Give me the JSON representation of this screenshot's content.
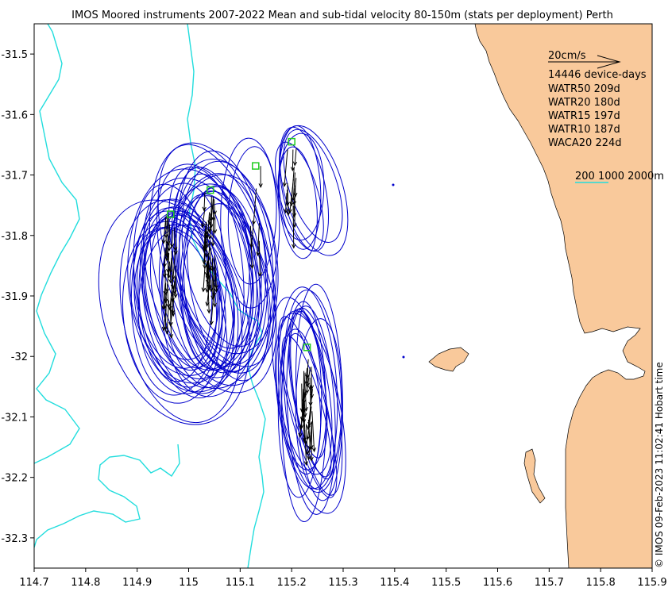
{
  "title": "IMOS Moored instruments 2007-2022 Mean and sub-tidal velocity 80-150m (stats per deployment) Perth",
  "credit": "© IMOS 09-Feb-2023 11:02:41 Hobart time",
  "axes": {
    "x_ticks": [
      "114.7",
      "114.8",
      "114.9",
      "115",
      "115.1",
      "115.2",
      "115.3",
      "115.4",
      "115.5",
      "115.6",
      "115.7",
      "115.8",
      "115.9"
    ],
    "y_ticks": [
      "-31.5",
      "-31.6",
      "-31.7",
      "-31.8",
      "-31.9",
      "-32",
      "-32.1",
      "-32.2",
      "-32.3"
    ]
  },
  "legend": {
    "scale_label": "20cm/s",
    "device_days": "14446 device-days",
    "sites": [
      "WATR50 209d",
      "WATR20 180d",
      "WATR15 197d",
      "WATR10 187d",
      "WACA20 224d"
    ],
    "isobath_label": "200 1000 2000m"
  },
  "colors": {
    "land": "#f9c99b",
    "ellipse": "#0000cc",
    "isobath": "#22dddd",
    "arrow": "#000000",
    "mooring": "#22cc22"
  },
  "chart_data": {
    "type": "map",
    "xlim": [
      114.7,
      115.9
    ],
    "ylim": [
      -32.35,
      -31.45
    ],
    "xlabel": "",
    "ylabel": "",
    "moorings": [
      {
        "name": "WATR50",
        "lon": 114.965,
        "lat": -31.765
      },
      {
        "name": "WATR20",
        "lon": 115.042,
        "lat": -31.725
      },
      {
        "name": "WATR15",
        "lon": 115.13,
        "lat": -31.685
      },
      {
        "name": "WATR10",
        "lon": 115.2,
        "lat": -31.645
      },
      {
        "name": "WACA20",
        "lon": 115.23,
        "lat": -31.985
      }
    ],
    "ellipse_clusters": [
      {
        "site": "WATR50",
        "center": [
          114.985,
          -31.9
        ],
        "count": 18,
        "semi_major_deg": 0.17,
        "semi_minor_deg": 0.095
      },
      {
        "site": "WATR20",
        "center": [
          115.06,
          -31.86
        ],
        "count": 20,
        "semi_major_deg": 0.18,
        "semi_minor_deg": 0.09
      },
      {
        "site": "WATR15",
        "center": [
          115.13,
          -31.76
        ],
        "count": 2,
        "semi_major_deg": 0.14,
        "semi_minor_deg": 0.06
      },
      {
        "site": "WATR10",
        "center": [
          115.225,
          -31.72
        ],
        "count": 7,
        "semi_major_deg": 0.12,
        "semi_minor_deg": 0.055
      },
      {
        "site": "WACA20",
        "center": [
          115.235,
          -32.07
        ],
        "count": 16,
        "semi_major_deg": 0.16,
        "semi_minor_deg": 0.045
      }
    ]
  }
}
